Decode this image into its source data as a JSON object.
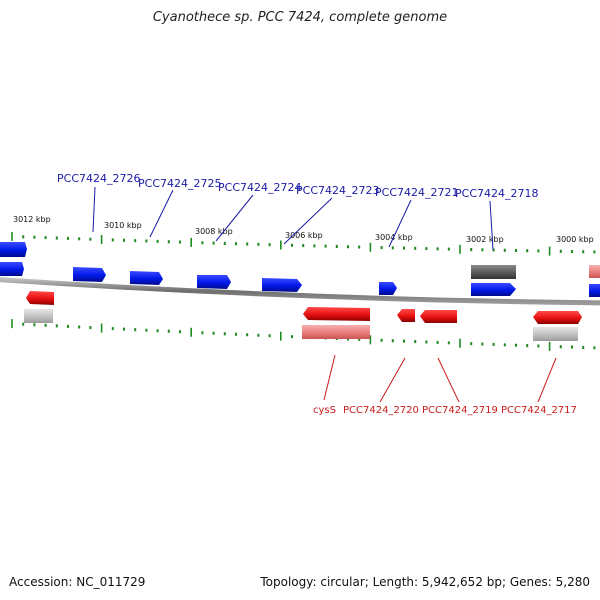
{
  "title": "Cyanothece sp. PCC 7424, complete genome",
  "footer": {
    "accession": "Accession: NC_011729",
    "stats": "Topology: circular; Length: 5,942,652 bp; Genes: 5,280"
  },
  "colors": {
    "forward_gene": "#0018e8",
    "reverse_gene": "#e81010",
    "forward_label": "#1a1aa6",
    "reverse_label": "#cc1a1a",
    "tick": "#1f8a1f",
    "backbone": "#7a7a7a",
    "forward_other": "#555555",
    "reverse_other": "#aaaaaa",
    "reverse_rna": "#e87878",
    "reverse_special": "#f0a0a0"
  },
  "scale_labels": [
    "3012 kbp",
    "3010 kbp",
    "3008 kbp",
    "3006 kbp",
    "3004 kbp",
    "3002 kbp",
    "3000 kbp"
  ],
  "top_labels": [
    "PCC7424_2726",
    "PCC7424_2725",
    "PCC7424_2724",
    "PCC7424_2723",
    "PCC7424_2721",
    "PCC7424_2718"
  ],
  "bottom_labels": [
    "cysS",
    "PCC7424_2720",
    "PCC7424_2719",
    "PCC7424_2717"
  ]
}
